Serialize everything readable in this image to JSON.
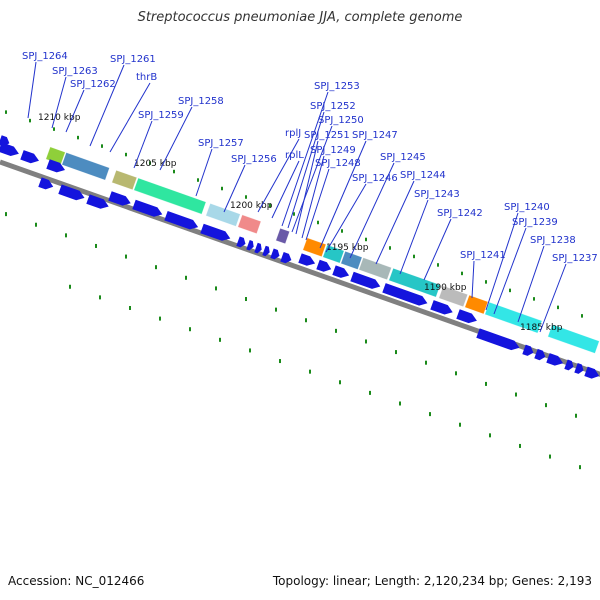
{
  "title": "Streptococcus pneumoniae JJA, complete genome",
  "footer": {
    "accession": "Accession: NC_012466",
    "summary": "Topology: linear; Length: 2,120,234 bp; Genes: 2,193"
  },
  "colors": {
    "label": "#2233cc",
    "cds_arrow": "#1414dd",
    "backbone": "#808080",
    "tick": "#1a8a1a"
  },
  "map": {
    "kbp_labels": [
      "1210 kbp",
      "1205 kbp",
      "1200 kbp",
      "1195 kbp",
      "1190 kbp",
      "1185 kbp"
    ],
    "gene_labels": [
      "SPJ_1264",
      "SPJ_1263",
      "SPJ_1262",
      "SPJ_1261",
      "thrB",
      "SPJ_1258",
      "SPJ_1259",
      "SPJ_1257",
      "SPJ_1256",
      "rplJ",
      "rplL",
      "SPJ_1253",
      "SPJ_1252",
      "SPJ_1250",
      "SPJ_1251",
      "SPJ_1249",
      "SPJ_1248",
      "SPJ_1247",
      "SPJ_1245",
      "SPJ_1246",
      "SPJ_1244",
      "SPJ_1243",
      "SPJ_1242",
      "SPJ_1241",
      "SPJ_1240",
      "SPJ_1239",
      "SPJ_1238",
      "SPJ_1237"
    ]
  }
}
